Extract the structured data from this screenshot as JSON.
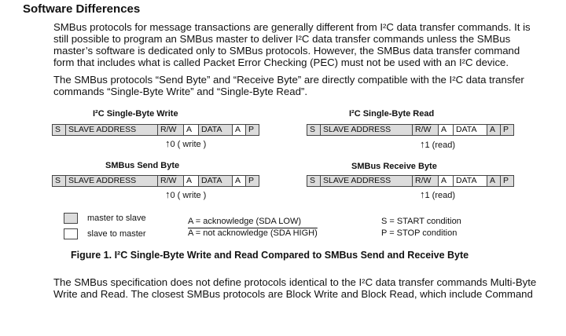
{
  "heading": "Software Differences",
  "para1": {
    "lines": [
      "SMBus protocols for message transactions are generally different from I²C data transfer commands. It is",
      "still possible to program an SMBus master to deliver I²C data transfer commands unless the SMBus",
      "master’s software is dedicated only to SMBus protocols. However, the SMBus data transfer command",
      "form that includes what is called Packet Error Checking (PEC) must not be used with an I²C device."
    ]
  },
  "para2": {
    "lines": [
      "The SMBus protocols “Send Byte” and “Receive Byte” are directly compatible with the I²C data transfer",
      "commands “Single-Byte Write” and “Single-Byte Read”."
    ]
  },
  "frames": {
    "i2c_write": {
      "title": "I²C Single-Byte Write",
      "cells": [
        "S",
        "SLAVE ADDRESS",
        "R/W",
        "A",
        "DATA",
        "A",
        "P"
      ],
      "rw_note": "0 ( write )"
    },
    "i2c_read": {
      "title": "I²C Single-Byte     Read",
      "cells": [
        "S",
        "SLAVE ADDRESS",
        "R/W",
        "A",
        "DATA",
        "A",
        "P"
      ],
      "rw_note": "1 (read)"
    },
    "smbus_send": {
      "title": "SMBus   Send   Byte",
      "cells": [
        "S",
        "SLAVE ADDRESS",
        "R/W",
        "A",
        "DATA",
        "A",
        "P"
      ],
      "rw_note": "0 ( write )"
    },
    "smbus_receive": {
      "title": "SMBus   Receive    Byte",
      "cells": [
        "S",
        "SLAVE ADDRESS",
        "R/W",
        "A",
        "DATA",
        "A",
        "P"
      ],
      "rw_note": "1 (read)"
    }
  },
  "legend": {
    "master_to_slave": "master to slave",
    "slave_to_master": "slave to master",
    "ack": "A = acknowledge (SDA LOW)",
    "nack": "A = not acknowledge (SDA HIGH)",
    "start": "S = START condition",
    "stop": "P = STOP condition"
  },
  "caption": "Figure 1. I²C Single-Byte Write and Read Compared to SMBus Send and Receive Byte",
  "para3": {
    "lines": [
      "The SMBus specification does not define protocols identical to the I²C data transfer commands Multi-Byte",
      "Write and Read. The closest SMBus protocols are Block Write and Block Read, which include Command"
    ]
  },
  "colors": {
    "master_to_slave_fill": "#dcdcdc",
    "slave_to_master_fill": "#ffffff"
  }
}
